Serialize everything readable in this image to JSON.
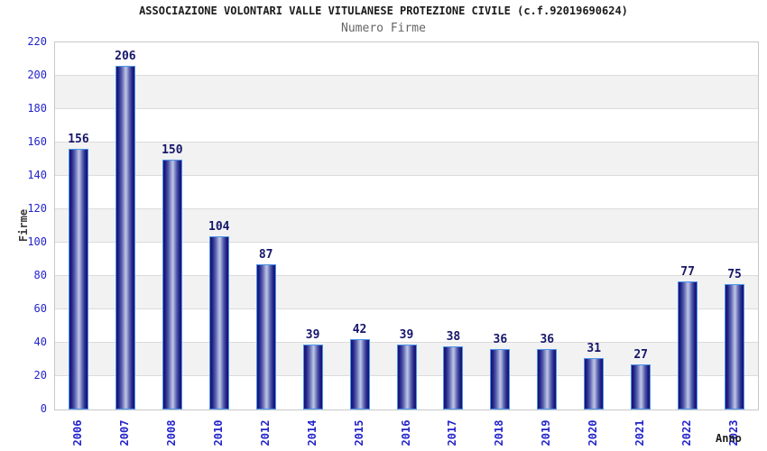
{
  "header": {
    "title": "ASSOCIAZIONE VOLONTARI VALLE VITULANESE PROTEZIONE CIVILE (c.f.92019690624)",
    "subtitle": "Numero Firme"
  },
  "chart_data": {
    "type": "bar",
    "title": "ASSOCIAZIONE VOLONTARI VALLE VITULANESE PROTEZIONE CIVILE (c.f.92019690624)",
    "subtitle": "Numero Firme",
    "categories": [
      "2006",
      "2007",
      "2008",
      "2010",
      "2012",
      "2014",
      "2015",
      "2016",
      "2017",
      "2018",
      "2019",
      "2020",
      "2021",
      "2022",
      "2023"
    ],
    "values": [
      156,
      206,
      150,
      104,
      87,
      39,
      42,
      39,
      38,
      36,
      36,
      31,
      27,
      77,
      75
    ],
    "xlabel": "Anno",
    "ylabel": "Firme",
    "ylim": [
      0,
      220
    ],
    "ytick_step": 20,
    "yticks": [
      0,
      20,
      40,
      60,
      80,
      100,
      120,
      140,
      160,
      180,
      200,
      220
    ],
    "grid": "horizontal-alternating-bands",
    "legend": "none",
    "colors": {
      "axis_text": "#2323cc",
      "value_label": "#16166b",
      "bar_border": "#4d94e8",
      "bar_dark": "#13136a",
      "bar_highlight": "#c0c5e4",
      "band_gray": "#f2f2f2",
      "gridline": "#dcdcdc",
      "plot_border": "#c8c8c8",
      "title_text": "#1b1b1b",
      "subtitle_text": "#666666"
    }
  }
}
